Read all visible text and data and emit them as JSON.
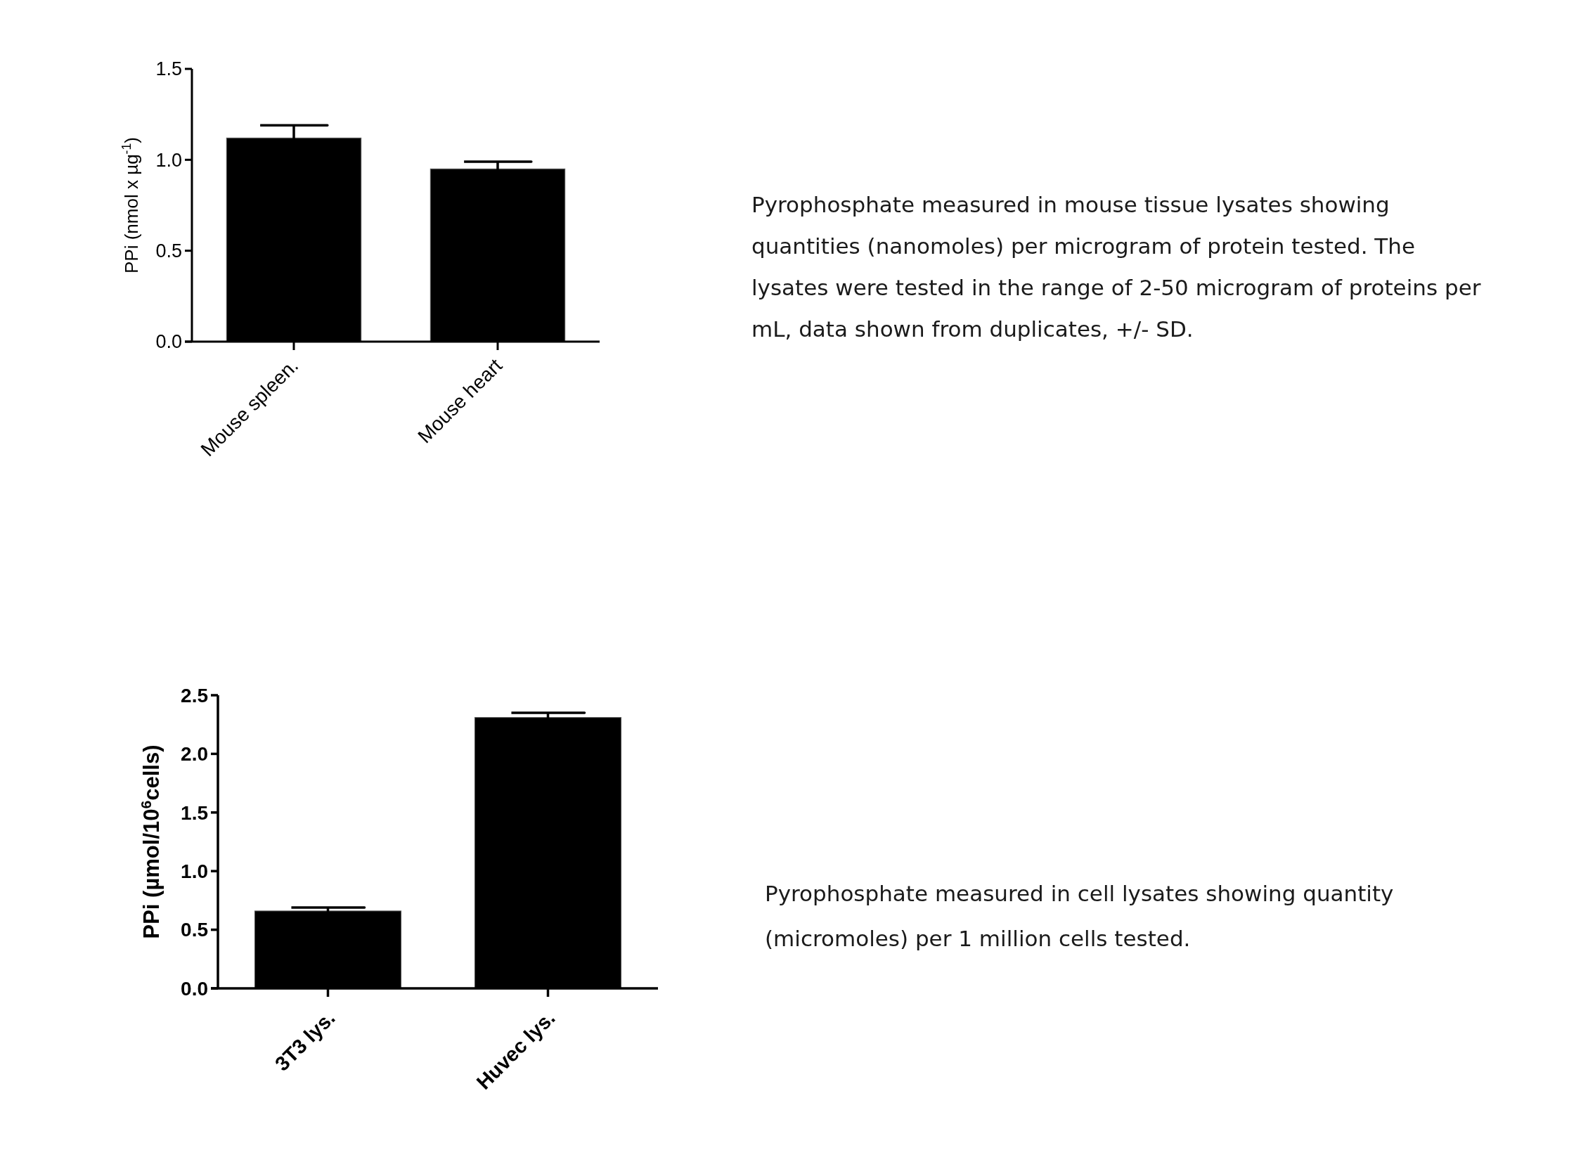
{
  "chart_data": [
    {
      "type": "bar",
      "categories": [
        "Mouse spleen.",
        "Mouse heart"
      ],
      "values": [
        1.12,
        0.95
      ],
      "errors": [
        0.07,
        0.04
      ],
      "color": "#000000",
      "ylabel": "PPi (nmol x µg$^{-1}$)",
      "ylim": [
        0,
        1.5
      ],
      "yticks": [
        {
          "value": 0,
          "label": "0.0"
        },
        0.5,
        {
          "value": 1,
          "label": "1.0"
        },
        1.5
      ],
      "annotations": [
        "Pyrophosphate measured in mouse tissue lysates showing quantities (nanomoles) per microgram of protein tested. The lysates were tested in the range of 2-50 microgram of proteins per mL, data shown from duplicates, +/- SD."
      ]
    },
    {
      "type": "bar",
      "categories": [
        "3T3 lys.",
        "Huvec lys."
      ],
      "values": [
        0.66,
        2.31
      ],
      "errors": [
        0.03,
        0.04
      ],
      "color": "#000000",
      "ylabel": "PPi (µmol/10$^{6}$cells)",
      "ylim": [
        0,
        2.5
      ],
      "yticks": [
        {
          "value": 0,
          "label": "0.0"
        },
        0.5,
        {
          "value": 1,
          "label": "1.0"
        },
        1.5,
        {
          "value": 2,
          "label": "2.0"
        },
        2.5
      ],
      "annotations": [
        "Pyrophosphate measured in cell lysates showing quantity (micromoles) per 1 million cells tested."
      ]
    }
  ]
}
